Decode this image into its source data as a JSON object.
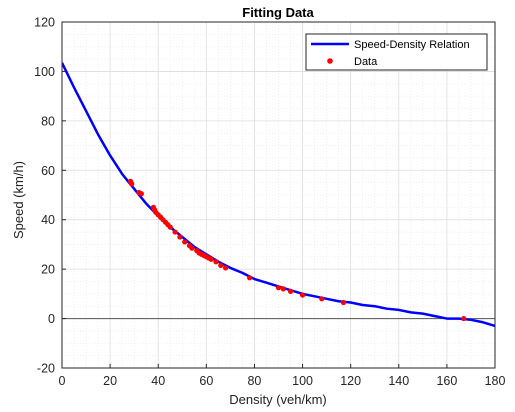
{
  "chart_data": {
    "type": "line",
    "title": "Fitting Data",
    "xlabel": "Density (veh/km)",
    "ylabel": "Speed (km/h)",
    "xlim": [
      0,
      180
    ],
    "ylim": [
      -20,
      120
    ],
    "xticks": [
      0,
      20,
      40,
      60,
      80,
      100,
      120,
      140,
      160,
      180
    ],
    "yticks": [
      -20,
      0,
      20,
      40,
      60,
      80,
      100,
      120
    ],
    "grid": "on (major and minor)",
    "legend_position": "top-right",
    "zero_line": 0,
    "series": [
      {
        "name": "Speed-Density Relation",
        "kind": "line",
        "color": "#0000ff",
        "x": [
          0,
          5,
          10,
          15,
          20,
          25,
          30,
          35,
          40,
          45,
          50,
          55,
          60,
          65,
          70,
          75,
          80,
          85,
          90,
          95,
          100,
          105,
          110,
          115,
          120,
          125,
          130,
          135,
          140,
          145,
          150,
          155,
          160,
          165,
          170,
          175,
          180
        ],
        "y": [
          103.5,
          93.5,
          84,
          74.5,
          66,
          58.5,
          52.5,
          46.5,
          41.5,
          37,
          33,
          29,
          26,
          23,
          20.5,
          18.5,
          16,
          14.5,
          13,
          11.5,
          10,
          9,
          8,
          7,
          6.5,
          5.5,
          5,
          4,
          3.5,
          2.5,
          2,
          1,
          0,
          0,
          -0.5,
          -1.5,
          -3
        ]
      },
      {
        "name": "Data",
        "kind": "scatter",
        "color": "#ff0000",
        "x": [
          28.5,
          29,
          32,
          33,
          38,
          38.5,
          39,
          40,
          41,
          42,
          43,
          44,
          45,
          47,
          49,
          51,
          53,
          54,
          56,
          57,
          58,
          59,
          60,
          61,
          62,
          64,
          66,
          68,
          78,
          90,
          92,
          95,
          100,
          108,
          117,
          167
        ],
        "y": [
          55.5,
          54.5,
          51,
          50.5,
          45,
          44,
          43,
          42,
          41,
          40,
          39,
          38,
          37,
          35,
          33,
          31,
          29.5,
          28.5,
          27.5,
          26.5,
          26,
          25.5,
          25,
          24.5,
          24,
          23,
          21.5,
          20.5,
          16.5,
          12.5,
          12,
          11,
          9.5,
          8,
          6.5,
          0
        ]
      }
    ]
  }
}
